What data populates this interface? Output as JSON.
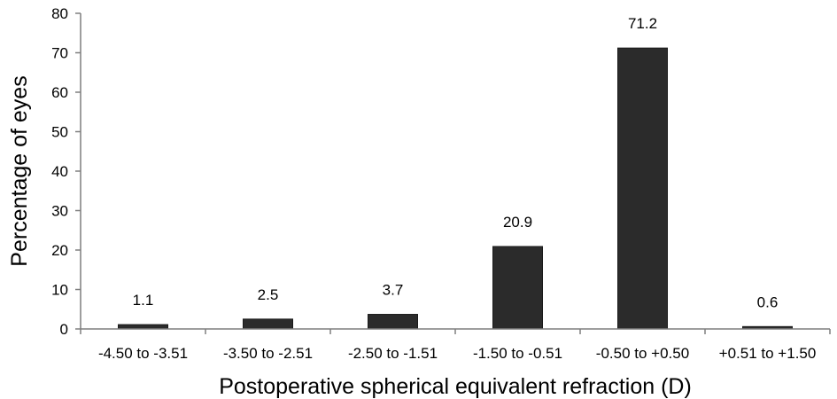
{
  "chart_data": {
    "type": "bar",
    "title": "",
    "xlabel": "Postoperative spherical equivalent refraction (D)",
    "ylabel": "Percentage of eyes",
    "categories": [
      "-4.50 to -3.51",
      "-3.50 to -2.51",
      "-2.50 to -1.51",
      "-1.50 to -0.51",
      "-0.50 to +0.50",
      "+0.51 to +1.50"
    ],
    "values": [
      1.1,
      2.5,
      3.7,
      20.9,
      71.2,
      0.6
    ],
    "data_labels": [
      "1.1",
      "2.5",
      "3.7",
      "20.9",
      "71.2",
      "0.6"
    ],
    "ylim": [
      0,
      80
    ],
    "yticks": [
      0,
      10,
      20,
      30,
      40,
      50,
      60,
      70,
      80
    ],
    "ytick_labels": [
      "0",
      "10",
      "20",
      "30",
      "40",
      "50",
      "60",
      "70",
      "80"
    ],
    "grid": false,
    "legend": "none",
    "bar_color": "#2b2b2b"
  }
}
